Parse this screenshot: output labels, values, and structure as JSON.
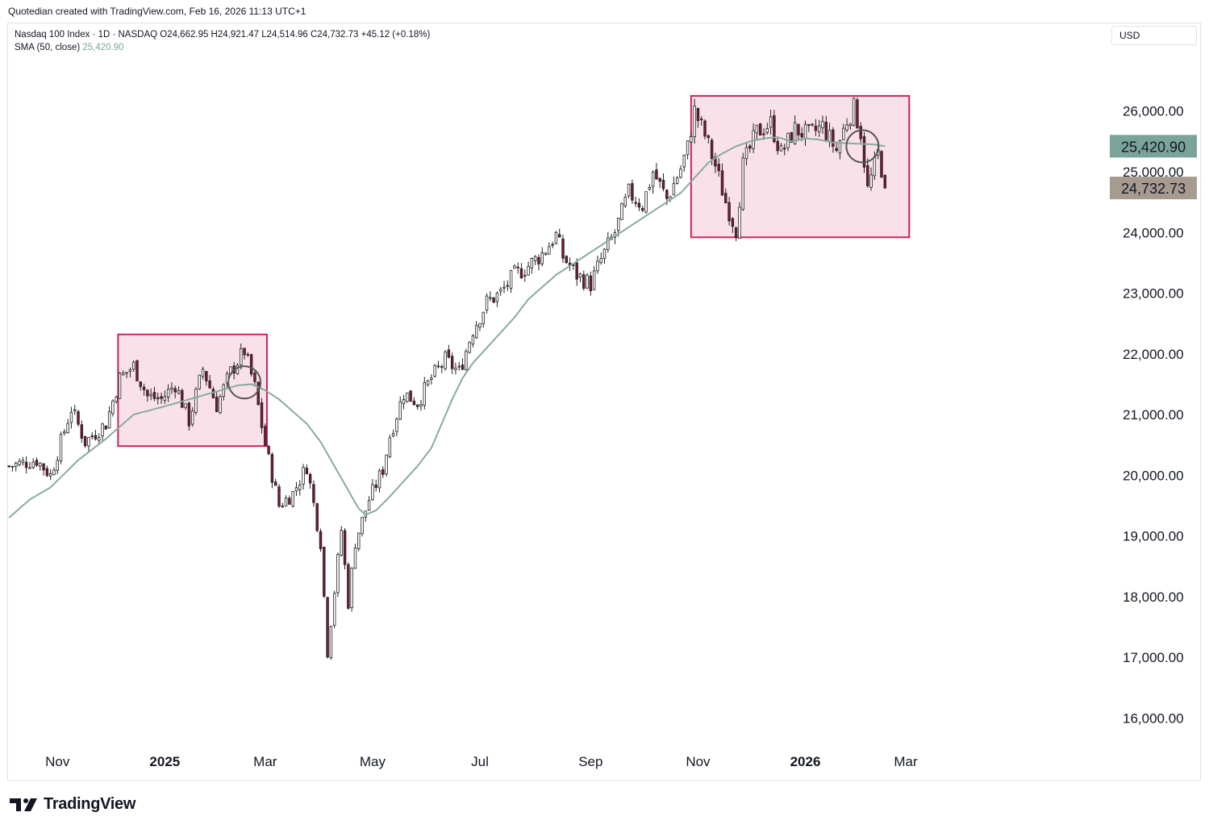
{
  "header": {
    "credit": "Quotedian created with TradingView.com, Feb 16, 2026 11:13 UTC+1"
  },
  "legend": {
    "line1": "Nasdaq 100 Index · 1D · NASDAQ  O24,662.95  H24,921.47  L24,514.96  C24,732.73  +45.12 (+0.18%)",
    "sma_label": "SMA (50, close)",
    "sma_value": "25,420.90"
  },
  "currency": "USD",
  "footer": {
    "brand": "TradingView"
  },
  "colors": {
    "candle_up": "#ffffff",
    "candle_down": "#7a1836",
    "candle_outline": "#222222",
    "sma": "#88ab9e",
    "box_fill": "#f9e1ea",
    "box_stroke": "#cc2458",
    "sma_tag": "#7aa39a",
    "price_tag": "#a79b90"
  },
  "chart_data": {
    "type": "candlestick",
    "title": "Nasdaq 100 Index · 1D · NASDAQ",
    "ylim": [
      15500,
      26900
    ],
    "y_ticks": [
      {
        "value": 16000,
        "label": "16,000.00"
      },
      {
        "value": 17000,
        "label": "17,000.00"
      },
      {
        "value": 18000,
        "label": "18,000.00"
      },
      {
        "value": 19000,
        "label": "19,000.00"
      },
      {
        "value": 20000,
        "label": "20,000.00"
      },
      {
        "value": 21000,
        "label": "21,000.00"
      },
      {
        "value": 22000,
        "label": "22,000.00"
      },
      {
        "value": 23000,
        "label": "23,000.00"
      },
      {
        "value": 24000,
        "label": "24,000.00"
      },
      {
        "value": 25000,
        "label": "25,000.00"
      },
      {
        "value": 26000,
        "label": "26,000.00"
      }
    ],
    "x_ticks": [
      {
        "bar": 14,
        "label": "Nov",
        "bold": false
      },
      {
        "bar": 45,
        "label": "2025",
        "bold": true
      },
      {
        "bar": 74,
        "label": "Mar",
        "bold": false
      },
      {
        "bar": 105,
        "label": "May",
        "bold": false
      },
      {
        "bar": 136,
        "label": "Jul",
        "bold": false
      },
      {
        "bar": 168,
        "label": "Sep",
        "bold": false
      },
      {
        "bar": 199,
        "label": "Nov",
        "bold": false
      },
      {
        "bar": 230,
        "label": "2026",
        "bold": true
      },
      {
        "bar": 259,
        "label": "Mar",
        "bold": false
      }
    ],
    "x_bar_range": [
      -0.5,
      317
    ],
    "anchors": [
      [
        0,
        20150
      ],
      [
        8,
        20250
      ],
      [
        12,
        20000
      ],
      [
        18,
        21100
      ],
      [
        22,
        20550
      ],
      [
        28,
        20850
      ],
      [
        32,
        21600
      ],
      [
        36,
        21800
      ],
      [
        40,
        21300
      ],
      [
        44,
        21250
      ],
      [
        48,
        21500
      ],
      [
        52,
        20900
      ],
      [
        56,
        21750
      ],
      [
        60,
        21150
      ],
      [
        64,
        21700
      ],
      [
        68,
        22050
      ],
      [
        71,
        21450
      ],
      [
        74,
        20500
      ],
      [
        78,
        19500
      ],
      [
        82,
        19700
      ],
      [
        86,
        20150
      ],
      [
        90,
        18900
      ],
      [
        92,
        17100
      ],
      [
        94,
        18100
      ],
      [
        96,
        19100
      ],
      [
        98,
        17900
      ],
      [
        100,
        18900
      ],
      [
        104,
        19600
      ],
      [
        108,
        20100
      ],
      [
        110,
        20650
      ],
      [
        114,
        21350
      ],
      [
        118,
        21200
      ],
      [
        122,
        21600
      ],
      [
        126,
        21900
      ],
      [
        130,
        21700
      ],
      [
        134,
        22400
      ],
      [
        138,
        22850
      ],
      [
        142,
        23000
      ],
      [
        146,
        23300
      ],
      [
        150,
        23450
      ],
      [
        154,
        23650
      ],
      [
        158,
        23950
      ],
      [
        160,
        23600
      ],
      [
        164,
        23300
      ],
      [
        168,
        23150
      ],
      [
        171,
        23550
      ],
      [
        175,
        24000
      ],
      [
        179,
        24650
      ],
      [
        183,
        24450
      ],
      [
        186,
        25000
      ],
      [
        190,
        24550
      ],
      [
        194,
        25050
      ],
      [
        196,
        25400
      ],
      [
        198,
        26000
      ],
      [
        201,
        25600
      ],
      [
        204,
        25100
      ],
      [
        207,
        24500
      ],
      [
        210,
        24050
      ],
      [
        212,
        25100
      ],
      [
        216,
        25650
      ],
      [
        220,
        25800
      ],
      [
        223,
        25300
      ],
      [
        227,
        25700
      ],
      [
        231,
        25600
      ],
      [
        235,
        25750
      ],
      [
        239,
        25350
      ],
      [
        242,
        25850
      ],
      [
        244,
        26050
      ],
      [
        246,
        25650
      ],
      [
        248,
        24700
      ],
      [
        251,
        25300
      ],
      [
        253,
        24800
      ]
    ],
    "last_close": 24732.73,
    "sma_anchors": [
      [
        0,
        19300
      ],
      [
        6,
        19600
      ],
      [
        12,
        19800
      ],
      [
        20,
        20250
      ],
      [
        28,
        20600
      ],
      [
        36,
        21000
      ],
      [
        44,
        21120
      ],
      [
        52,
        21250
      ],
      [
        60,
        21380
      ],
      [
        66,
        21480
      ],
      [
        70,
        21500
      ],
      [
        74,
        21400
      ],
      [
        78,
        21250
      ],
      [
        82,
        21050
      ],
      [
        86,
        20850
      ],
      [
        90,
        20550
      ],
      [
        94,
        20150
      ],
      [
        98,
        19750
      ],
      [
        101,
        19450
      ],
      [
        103,
        19350
      ],
      [
        106,
        19420
      ],
      [
        110,
        19650
      ],
      [
        114,
        19900
      ],
      [
        118,
        20150
      ],
      [
        122,
        20450
      ],
      [
        125,
        20850
      ],
      [
        128,
        21250
      ],
      [
        131,
        21600
      ],
      [
        134,
        21850
      ],
      [
        138,
        22100
      ],
      [
        142,
        22350
      ],
      [
        146,
        22600
      ],
      [
        150,
        22900
      ],
      [
        154,
        23100
      ],
      [
        158,
        23300
      ],
      [
        162,
        23450
      ],
      [
        166,
        23600
      ],
      [
        170,
        23750
      ],
      [
        174,
        23900
      ],
      [
        178,
        24050
      ],
      [
        182,
        24200
      ],
      [
        186,
        24350
      ],
      [
        190,
        24500
      ],
      [
        194,
        24650
      ],
      [
        198,
        24900
      ],
      [
        202,
        25150
      ],
      [
        206,
        25300
      ],
      [
        210,
        25420
      ],
      [
        214,
        25500
      ],
      [
        218,
        25550
      ],
      [
        222,
        25570
      ],
      [
        226,
        25500
      ],
      [
        230,
        25550
      ],
      [
        234,
        25530
      ],
      [
        238,
        25480
      ],
      [
        242,
        25470
      ],
      [
        246,
        25460
      ],
      [
        250,
        25450
      ],
      [
        253,
        25420
      ]
    ],
    "sma_last": 25420.9,
    "annotations": {
      "boxes": [
        {
          "bar_start": 31.5,
          "bar_end": 74.5,
          "price_low": 20480,
          "price_high": 22320
        },
        {
          "bar_start": 197,
          "bar_end": 260,
          "price_low": 23920,
          "price_high": 26250
        }
      ],
      "circles": [
        {
          "bar": 68,
          "price": 21530
        },
        {
          "bar": 246.5,
          "price": 25420
        }
      ]
    },
    "price_tags": [
      {
        "kind": "sma",
        "value": 25420.9,
        "label": "25,420.90"
      },
      {
        "kind": "last",
        "value": 24732.73,
        "label": "24,732.73"
      }
    ]
  }
}
